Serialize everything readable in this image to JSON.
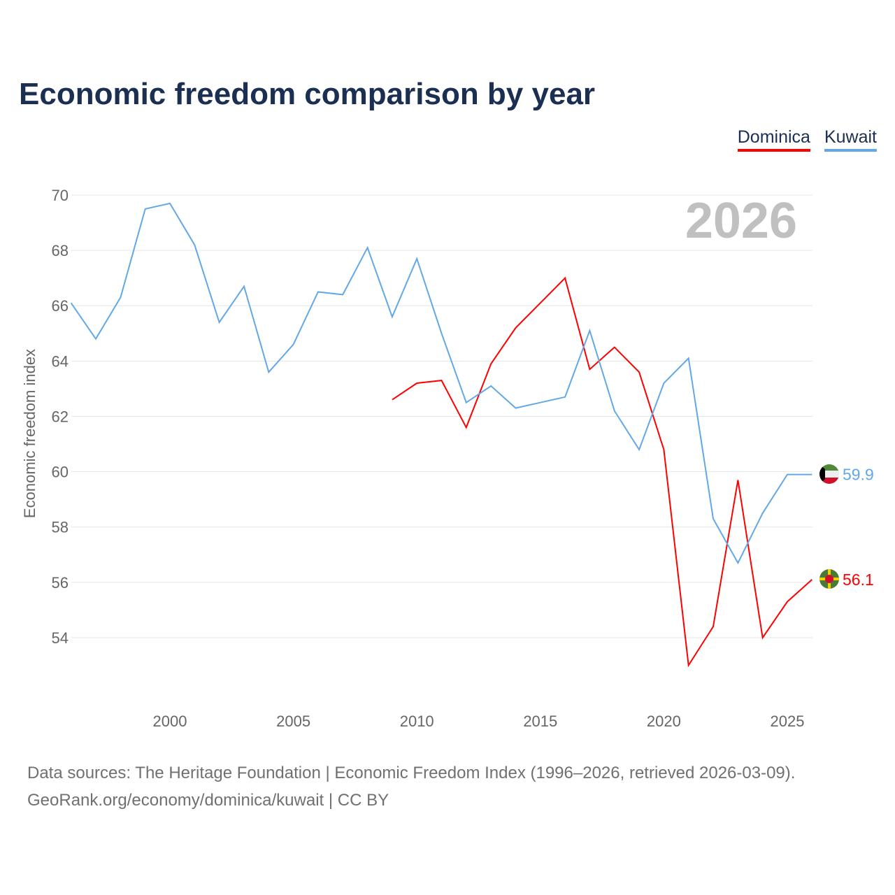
{
  "chart_data": {
    "type": "line",
    "title": "Economic freedom comparison by year",
    "ylabel": "Economic freedom index",
    "xlabel": "",
    "xlim": [
      1996,
      2026
    ],
    "ylim": [
      52.5,
      70.5
    ],
    "yticks": [
      54,
      56,
      58,
      60,
      62,
      64,
      66,
      68,
      70
    ],
    "xticks": [
      2000,
      2005,
      2010,
      2015,
      2020,
      2025
    ],
    "grid": true,
    "legend_placement": "top-right",
    "year_watermark": "2026",
    "series": [
      {
        "name": "Dominica",
        "color": "#ff0000",
        "end_label": "56.1",
        "x": [
          2009,
          2010,
          2011,
          2012,
          2013,
          2014,
          2015,
          2016,
          2017,
          2018,
          2019,
          2020,
          2021,
          2022,
          2023,
          2024,
          2025,
          2026
        ],
        "values": [
          62.6,
          63.2,
          63.3,
          61.6,
          63.9,
          65.2,
          66.1,
          67.0,
          63.7,
          64.5,
          63.6,
          60.8,
          53.0,
          54.4,
          59.7,
          54.0,
          55.3,
          56.1
        ]
      },
      {
        "name": "Kuwait",
        "color": "#62a8e8",
        "end_label": "59.9",
        "x": [
          1996,
          1997,
          1998,
          1999,
          2000,
          2001,
          2002,
          2003,
          2004,
          2005,
          2006,
          2007,
          2008,
          2009,
          2010,
          2011,
          2012,
          2013,
          2014,
          2015,
          2016,
          2017,
          2018,
          2019,
          2020,
          2021,
          2022,
          2023,
          2024,
          2025,
          2026
        ],
        "values": [
          66.1,
          64.8,
          66.3,
          69.5,
          69.7,
          68.2,
          65.4,
          66.7,
          63.6,
          64.6,
          66.5,
          66.4,
          68.1,
          65.6,
          67.7,
          65.0,
          62.5,
          63.1,
          62.3,
          62.5,
          62.7,
          65.1,
          62.2,
          60.8,
          63.2,
          64.1,
          58.3,
          56.7,
          58.5,
          59.9,
          59.9
        ]
      }
    ]
  },
  "footer": {
    "line1": "Data sources: The Heritage Foundation | Economic Freedom Index (1996–2026, retrieved 2026-03-09).",
    "line2": "GeoRank.org/economy/dominica/kuwait | CC BY"
  }
}
